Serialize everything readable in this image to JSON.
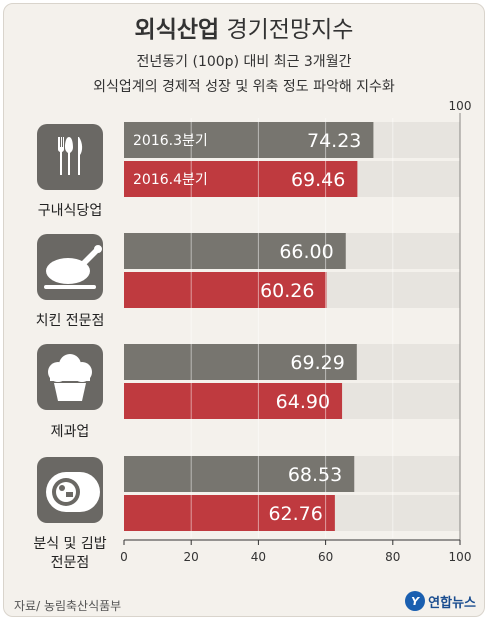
{
  "title": {
    "bold": "외식산업",
    "rest": "경기전망지수"
  },
  "subtitle": [
    "전년동기 (100p) 대비 최근 3개월간",
    "외식업계의 경제적 성장 및 위축 정도 파악해 지수화"
  ],
  "source": "자료/ 농림축산식품부",
  "logo": "연합뉴스",
  "colors": {
    "series1": "#77756f",
    "series2": "#bf3a3f",
    "track": "#e7e4df",
    "icon": "#6a6864"
  },
  "chart_data": {
    "type": "bar",
    "orientation": "horizontal",
    "categories": [
      "구내식당업",
      "치킨 전문점",
      "제과업",
      "분식 및 김밥 전문점"
    ],
    "series": [
      {
        "name": "2016.3분기",
        "values": [
          74.23,
          66.0,
          69.29,
          68.53
        ]
      },
      {
        "name": "2016.4분기",
        "values": [
          69.46,
          60.26,
          64.9,
          62.76
        ]
      }
    ],
    "xlim": [
      0,
      100
    ],
    "xticks": [
      0,
      20,
      40,
      60,
      80,
      100
    ],
    "top_tick": "100",
    "value_labels": [
      [
        "74.23",
        "66.00",
        "69.29",
        "68.53"
      ],
      [
        "69.46",
        "60.26",
        "64.90",
        "62.76"
      ]
    ]
  }
}
